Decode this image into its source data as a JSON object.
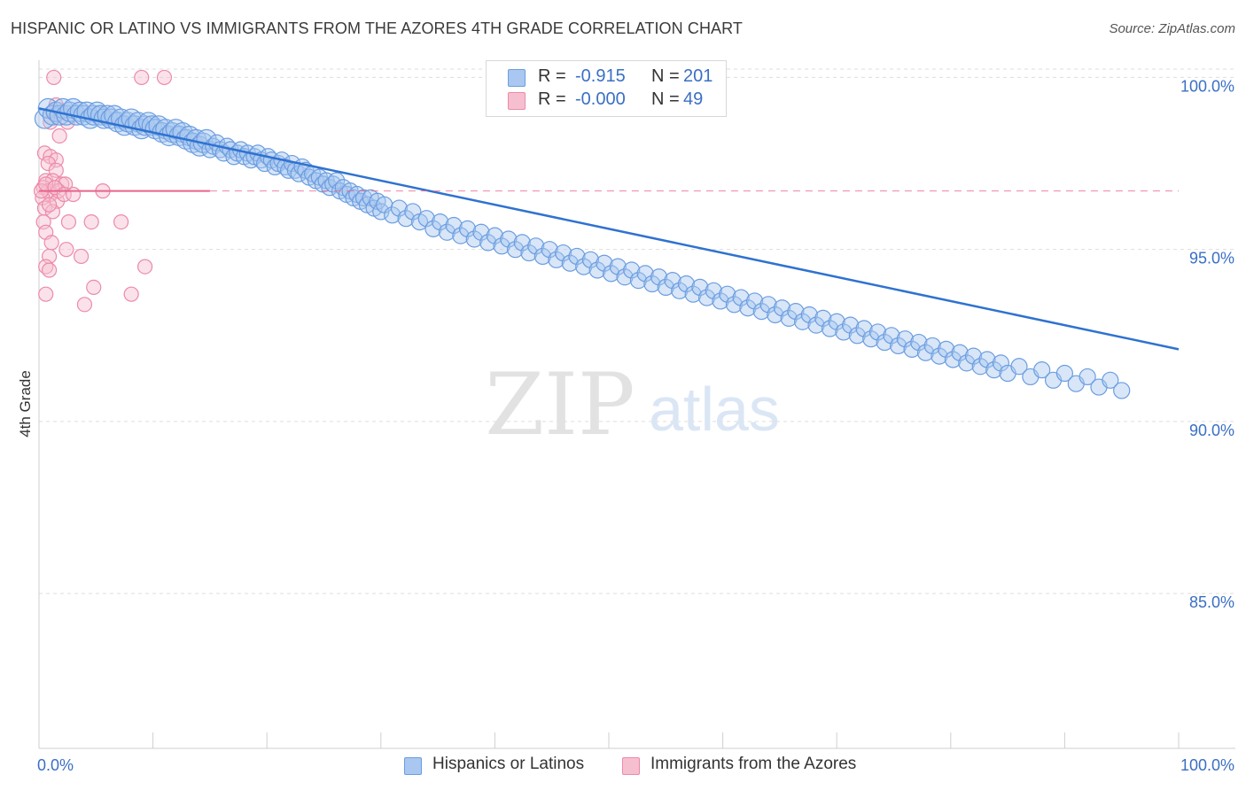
{
  "title": "HISPANIC OR LATINO VS IMMIGRANTS FROM THE AZORES 4TH GRADE CORRELATION CHART",
  "source": "Source: ZipAtlas.com",
  "watermark": {
    "zip": "ZIP",
    "atlas": "atlas"
  },
  "legend": {
    "series1": {
      "r_label": "R =",
      "r_value": "-0.915",
      "n_label": "N =",
      "n_value": "201"
    },
    "series2": {
      "r_label": "R =",
      "r_value": "-0.000",
      "n_label": "N =",
      "n_value": "49"
    }
  },
  "colors": {
    "blue": "#6b9de0",
    "blue_fill": "#a9c7f0",
    "blue_line": "#2f72d0",
    "pink": "#ec8aa8",
    "pink_fill": "#f6bfd0",
    "pink_line": "#e8648c",
    "grid": "#dddddd",
    "tick_label": "#3a6fc4"
  },
  "chart_data": {
    "type": "scatter",
    "title": "HISPANIC OR LATINO VS IMMIGRANTS FROM THE AZORES 4TH GRADE CORRELATION CHART",
    "xlabel": "",
    "ylabel": "4th Grade",
    "xlim": [
      0,
      100
    ],
    "ylim": [
      80.5,
      100.5
    ],
    "x_tick_labels": [
      {
        "value": 0,
        "label": "0.0%"
      },
      {
        "value": 100,
        "label": "100.0%"
      }
    ],
    "y_ticks": [
      {
        "value": 100,
        "label": "100.0%"
      },
      {
        "value": 95,
        "label": "95.0%"
      },
      {
        "value": 90,
        "label": "90.0%"
      },
      {
        "value": 85,
        "label": "85.0%"
      }
    ],
    "series": [
      {
        "name": "Hispanics or Latinos",
        "color": "#6b9de0",
        "trend": {
          "x0": 0,
          "y0": 99.1,
          "x1": 100,
          "y1": 92.1,
          "style": "solid"
        },
        "points": [
          [
            0.5,
            98.8
          ],
          [
            0.8,
            99.1
          ],
          [
            1.2,
            98.9
          ],
          [
            1.5,
            99.0
          ],
          [
            1.8,
            98.9
          ],
          [
            2.1,
            99.1
          ],
          [
            2.4,
            98.9
          ],
          [
            2.7,
            99.0
          ],
          [
            3.0,
            99.1
          ],
          [
            3.3,
            98.9
          ],
          [
            3.6,
            99.0
          ],
          [
            3.9,
            98.9
          ],
          [
            4.2,
            99.0
          ],
          [
            4.5,
            98.8
          ],
          [
            4.8,
            98.9
          ],
          [
            5.1,
            99.0
          ],
          [
            5.4,
            98.9
          ],
          [
            5.7,
            98.8
          ],
          [
            6.0,
            98.9
          ],
          [
            6.3,
            98.8
          ],
          [
            6.6,
            98.9
          ],
          [
            6.9,
            98.7
          ],
          [
            7.2,
            98.8
          ],
          [
            7.5,
            98.6
          ],
          [
            7.8,
            98.7
          ],
          [
            8.1,
            98.8
          ],
          [
            8.4,
            98.6
          ],
          [
            8.7,
            98.7
          ],
          [
            9.0,
            98.5
          ],
          [
            9.3,
            98.6
          ],
          [
            9.6,
            98.7
          ],
          [
            9.9,
            98.6
          ],
          [
            10.2,
            98.5
          ],
          [
            10.5,
            98.6
          ],
          [
            10.8,
            98.4
          ],
          [
            11.1,
            98.5
          ],
          [
            11.4,
            98.3
          ],
          [
            11.7,
            98.4
          ],
          [
            12.0,
            98.5
          ],
          [
            12.3,
            98.3
          ],
          [
            12.6,
            98.4
          ],
          [
            12.9,
            98.2
          ],
          [
            13.2,
            98.3
          ],
          [
            13.5,
            98.1
          ],
          [
            13.8,
            98.2
          ],
          [
            14.1,
            98.0
          ],
          [
            14.4,
            98.1
          ],
          [
            14.7,
            98.2
          ],
          [
            15.0,
            97.9
          ],
          [
            15.3,
            98.0
          ],
          [
            15.6,
            98.1
          ],
          [
            15.9,
            97.9
          ],
          [
            16.2,
            97.8
          ],
          [
            16.5,
            98.0
          ],
          [
            16.8,
            97.9
          ],
          [
            17.1,
            97.7
          ],
          [
            17.4,
            97.8
          ],
          [
            17.7,
            97.9
          ],
          [
            18.0,
            97.7
          ],
          [
            18.3,
            97.8
          ],
          [
            18.6,
            97.6
          ],
          [
            18.9,
            97.7
          ],
          [
            19.2,
            97.8
          ],
          [
            19.5,
            97.6
          ],
          [
            19.8,
            97.5
          ],
          [
            20.1,
            97.7
          ],
          [
            20.4,
            97.6
          ],
          [
            20.7,
            97.4
          ],
          [
            21.0,
            97.5
          ],
          [
            21.3,
            97.6
          ],
          [
            21.6,
            97.4
          ],
          [
            21.9,
            97.3
          ],
          [
            22.2,
            97.5
          ],
          [
            22.5,
            97.3
          ],
          [
            22.8,
            97.2
          ],
          [
            23.1,
            97.4
          ],
          [
            23.4,
            97.3
          ],
          [
            23.7,
            97.1
          ],
          [
            24.0,
            97.2
          ],
          [
            24.3,
            97.0
          ],
          [
            24.6,
            97.1
          ],
          [
            24.9,
            96.9
          ],
          [
            25.2,
            97.0
          ],
          [
            25.5,
            96.8
          ],
          [
            25.8,
            96.9
          ],
          [
            26.1,
            97.0
          ],
          [
            26.4,
            96.7
          ],
          [
            26.7,
            96.8
          ],
          [
            27.0,
            96.6
          ],
          [
            27.3,
            96.7
          ],
          [
            27.6,
            96.5
          ],
          [
            27.9,
            96.6
          ],
          [
            28.2,
            96.4
          ],
          [
            28.5,
            96.5
          ],
          [
            28.8,
            96.3
          ],
          [
            29.1,
            96.5
          ],
          [
            29.4,
            96.2
          ],
          [
            29.7,
            96.4
          ],
          [
            30.0,
            96.1
          ],
          [
            30.3,
            96.3
          ],
          [
            31.0,
            96.0
          ],
          [
            31.6,
            96.2
          ],
          [
            32.2,
            95.9
          ],
          [
            32.8,
            96.1
          ],
          [
            33.4,
            95.8
          ],
          [
            34.0,
            95.9
          ],
          [
            34.6,
            95.6
          ],
          [
            35.2,
            95.8
          ],
          [
            35.8,
            95.5
          ],
          [
            36.4,
            95.7
          ],
          [
            37.0,
            95.4
          ],
          [
            37.6,
            95.6
          ],
          [
            38.2,
            95.3
          ],
          [
            38.8,
            95.5
          ],
          [
            39.4,
            95.2
          ],
          [
            40.0,
            95.4
          ],
          [
            40.6,
            95.1
          ],
          [
            41.2,
            95.3
          ],
          [
            41.8,
            95.0
          ],
          [
            42.4,
            95.2
          ],
          [
            43.0,
            94.9
          ],
          [
            43.6,
            95.1
          ],
          [
            44.2,
            94.8
          ],
          [
            44.8,
            95.0
          ],
          [
            45.4,
            94.7
          ],
          [
            46.0,
            94.9
          ],
          [
            46.6,
            94.6
          ],
          [
            47.2,
            94.8
          ],
          [
            47.8,
            94.5
          ],
          [
            48.4,
            94.7
          ],
          [
            49.0,
            94.4
          ],
          [
            49.6,
            94.6
          ],
          [
            50.2,
            94.3
          ],
          [
            50.8,
            94.5
          ],
          [
            51.4,
            94.2
          ],
          [
            52.0,
            94.4
          ],
          [
            52.6,
            94.1
          ],
          [
            53.2,
            94.3
          ],
          [
            53.8,
            94.0
          ],
          [
            54.4,
            94.2
          ],
          [
            55.0,
            93.9
          ],
          [
            55.6,
            94.1
          ],
          [
            56.2,
            93.8
          ],
          [
            56.8,
            94.0
          ],
          [
            57.4,
            93.7
          ],
          [
            58.0,
            93.9
          ],
          [
            58.6,
            93.6
          ],
          [
            59.2,
            93.8
          ],
          [
            59.8,
            93.5
          ],
          [
            60.4,
            93.7
          ],
          [
            61.0,
            93.4
          ],
          [
            61.6,
            93.6
          ],
          [
            62.2,
            93.3
          ],
          [
            62.8,
            93.5
          ],
          [
            63.4,
            93.2
          ],
          [
            64.0,
            93.4
          ],
          [
            64.6,
            93.1
          ],
          [
            65.2,
            93.3
          ],
          [
            65.8,
            93.0
          ],
          [
            66.4,
            93.2
          ],
          [
            67.0,
            92.9
          ],
          [
            67.6,
            93.1
          ],
          [
            68.2,
            92.8
          ],
          [
            68.8,
            93.0
          ],
          [
            69.4,
            92.7
          ],
          [
            70.0,
            92.9
          ],
          [
            70.6,
            92.6
          ],
          [
            71.2,
            92.8
          ],
          [
            71.8,
            92.5
          ],
          [
            72.4,
            92.7
          ],
          [
            73.0,
            92.4
          ],
          [
            73.6,
            92.6
          ],
          [
            74.2,
            92.3
          ],
          [
            74.8,
            92.5
          ],
          [
            75.4,
            92.2
          ],
          [
            76.0,
            92.4
          ],
          [
            76.6,
            92.1
          ],
          [
            77.2,
            92.3
          ],
          [
            77.8,
            92.0
          ],
          [
            78.4,
            92.2
          ],
          [
            79.0,
            91.9
          ],
          [
            79.6,
            92.1
          ],
          [
            80.2,
            91.8
          ],
          [
            80.8,
            92.0
          ],
          [
            81.4,
            91.7
          ],
          [
            82.0,
            91.9
          ],
          [
            82.6,
            91.6
          ],
          [
            83.2,
            91.8
          ],
          [
            83.8,
            91.5
          ],
          [
            84.4,
            91.7
          ],
          [
            85.0,
            91.4
          ],
          [
            86.0,
            91.6
          ],
          [
            87.0,
            91.3
          ],
          [
            88.0,
            91.5
          ],
          [
            89.0,
            91.2
          ],
          [
            90.0,
            91.4
          ],
          [
            91.0,
            91.1
          ],
          [
            92.0,
            91.3
          ],
          [
            93.0,
            91.0
          ],
          [
            94.0,
            91.2
          ],
          [
            95.0,
            90.9
          ]
        ]
      },
      {
        "name": "Immigrants from the Azores",
        "color": "#ec8aa8",
        "trend": {
          "x0": 0,
          "y0": 96.7,
          "x1": 15,
          "y1": 96.7,
          "style": "solid",
          "extended_dashed_to": 100
        },
        "points": [
          [
            1.3,
            100.0
          ],
          [
            9.0,
            100.0
          ],
          [
            11.0,
            100.0
          ],
          [
            1.5,
            99.2
          ],
          [
            1.2,
            99.0
          ],
          [
            2.0,
            99.0
          ],
          [
            1.0,
            98.7
          ],
          [
            2.5,
            98.7
          ],
          [
            1.8,
            98.3
          ],
          [
            0.5,
            97.8
          ],
          [
            1.0,
            97.7
          ],
          [
            1.5,
            97.6
          ],
          [
            0.8,
            97.5
          ],
          [
            1.5,
            97.3
          ],
          [
            0.6,
            97.0
          ],
          [
            1.2,
            97.0
          ],
          [
            2.0,
            96.9
          ],
          [
            2.3,
            96.9
          ],
          [
            0.4,
            96.8
          ],
          [
            0.8,
            96.7
          ],
          [
            5.6,
            96.7
          ],
          [
            1.0,
            96.6
          ],
          [
            0.3,
            96.5
          ],
          [
            1.6,
            96.4
          ],
          [
            0.5,
            96.2
          ],
          [
            1.2,
            96.1
          ],
          [
            0.4,
            95.8
          ],
          [
            2.6,
            95.8
          ],
          [
            4.6,
            95.8
          ],
          [
            7.2,
            95.8
          ],
          [
            0.6,
            95.5
          ],
          [
            1.1,
            95.2
          ],
          [
            2.4,
            95.0
          ],
          [
            0.9,
            94.8
          ],
          [
            3.7,
            94.8
          ],
          [
            0.6,
            94.5
          ],
          [
            9.3,
            94.5
          ],
          [
            0.9,
            94.4
          ],
          [
            4.8,
            93.9
          ],
          [
            0.6,
            93.7
          ],
          [
            8.1,
            93.7
          ],
          [
            4.0,
            93.4
          ],
          [
            1.7,
            96.7
          ],
          [
            0.2,
            96.7
          ],
          [
            0.6,
            96.9
          ],
          [
            1.4,
            96.8
          ],
          [
            2.2,
            96.6
          ],
          [
            0.9,
            96.3
          ],
          [
            3.0,
            96.6
          ]
        ]
      }
    ]
  },
  "bottom_legend": {
    "series1": "Hispanics or Latinos",
    "series2": "Immigrants from the Azores"
  },
  "axis": {
    "ylabel": "4th Grade",
    "x_min_label": "0.0%",
    "x_max_label": "100.0%"
  }
}
